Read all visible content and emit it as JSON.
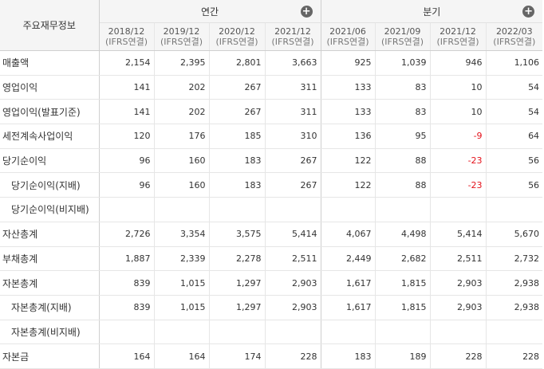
{
  "header": {
    "corner_label": "주요재무정보",
    "group_annual": "연간",
    "group_quarter": "분기",
    "expand_icon": "+",
    "periods": [
      {
        "date": "2018/12",
        "basis": "(IFRS연결)"
      },
      {
        "date": "2019/12",
        "basis": "(IFRS연결)"
      },
      {
        "date": "2020/12",
        "basis": "(IFRS연결)"
      },
      {
        "date": "2021/12",
        "basis": "(IFRS연결)"
      },
      {
        "date": "2021/06",
        "basis": "(IFRS연결)"
      },
      {
        "date": "2021/09",
        "basis": "(IFRS연결)"
      },
      {
        "date": "2021/12",
        "basis": "(IFRS연결)"
      },
      {
        "date": "2022/03",
        "basis": "(IFRS연결)"
      }
    ]
  },
  "rows": [
    {
      "label": "매출액",
      "indent": false,
      "values": [
        "2,154",
        "2,395",
        "2,801",
        "3,663",
        "925",
        "1,039",
        "946",
        "1,106"
      ]
    },
    {
      "label": "영업이익",
      "indent": false,
      "values": [
        "141",
        "202",
        "267",
        "311",
        "133",
        "83",
        "10",
        "54"
      ]
    },
    {
      "label": "영업이익(발표기준)",
      "indent": false,
      "values": [
        "141",
        "202",
        "267",
        "311",
        "133",
        "83",
        "10",
        "54"
      ]
    },
    {
      "label": "세전계속사업이익",
      "indent": false,
      "values": [
        "120",
        "176",
        "185",
        "310",
        "136",
        "95",
        "-9",
        "64"
      ]
    },
    {
      "label": "당기순이익",
      "indent": false,
      "values": [
        "96",
        "160",
        "183",
        "267",
        "122",
        "88",
        "-23",
        "56"
      ]
    },
    {
      "label": "당기순이익(지배)",
      "indent": true,
      "values": [
        "96",
        "160",
        "183",
        "267",
        "122",
        "88",
        "-23",
        "56"
      ]
    },
    {
      "label": "당기순이익(비지배)",
      "indent": true,
      "values": [
        "",
        "",
        "",
        "",
        "",
        "",
        "",
        ""
      ]
    },
    {
      "label": "자산총계",
      "indent": false,
      "values": [
        "2,726",
        "3,354",
        "3,575",
        "5,414",
        "4,067",
        "4,498",
        "5,414",
        "5,670"
      ]
    },
    {
      "label": "부채총계",
      "indent": false,
      "values": [
        "1,887",
        "2,339",
        "2,278",
        "2,511",
        "2,449",
        "2,682",
        "2,511",
        "2,732"
      ]
    },
    {
      "label": "자본총계",
      "indent": false,
      "values": [
        "839",
        "1,015",
        "1,297",
        "2,903",
        "1,617",
        "1,815",
        "2,903",
        "2,938"
      ]
    },
    {
      "label": "자본총계(지배)",
      "indent": true,
      "values": [
        "839",
        "1,015",
        "1,297",
        "2,903",
        "1,617",
        "1,815",
        "2,903",
        "2,938"
      ]
    },
    {
      "label": "자본총계(비지배)",
      "indent": true,
      "values": [
        "",
        "",
        "",
        "",
        "",
        "",
        "",
        ""
      ]
    },
    {
      "label": "자본금",
      "indent": false,
      "values": [
        "164",
        "164",
        "174",
        "228",
        "183",
        "189",
        "228",
        "228"
      ]
    }
  ]
}
